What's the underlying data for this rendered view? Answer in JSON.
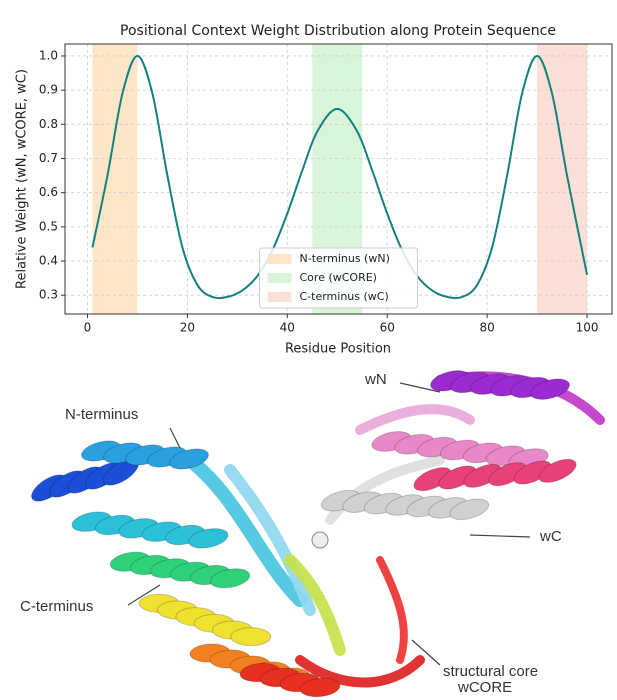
{
  "chart_data": {
    "type": "line",
    "title": "Positional Context Weight Distribution along Protein Sequence",
    "x_label": "Residue Position",
    "y_label": "Relative Weight (wN, wCORE, wC)",
    "x": [
      1,
      4,
      7,
      10,
      13,
      16,
      19,
      22,
      25,
      28,
      31,
      34,
      37,
      40,
      43,
      46,
      50,
      54,
      57,
      60,
      63,
      66,
      69,
      72,
      75,
      78,
      81,
      84,
      87,
      90,
      93,
      96,
      100
    ],
    "series": [
      {
        "color": "#14807f",
        "values": [
          0.44,
          0.65,
          0.89,
          1.0,
          0.89,
          0.65,
          0.44,
          0.33,
          0.295,
          0.295,
          0.314,
          0.356,
          0.431,
          0.539,
          0.665,
          0.779,
          0.845,
          0.779,
          0.665,
          0.539,
          0.431,
          0.356,
          0.314,
          0.295,
          0.295,
          0.33,
          0.44,
          0.65,
          0.89,
          1.0,
          0.89,
          0.65,
          0.36
        ]
      }
    ],
    "spans": [
      {
        "name": "N-terminus (wN)",
        "color": "#fde6c8",
        "range": [
          1,
          10
        ]
      },
      {
        "name": "Core (wCORE)",
        "color": "#d9f5d9",
        "range": [
          45,
          55
        ]
      },
      {
        "name": "C-terminus (wC)",
        "color": "#fce0d8",
        "range": [
          90,
          100
        ]
      }
    ],
    "xlim": [
      -4.5,
      105
    ],
    "ylim": [
      0.245,
      1.035
    ],
    "xticks": [
      0,
      20,
      40,
      60,
      80,
      100
    ],
    "yticks": [
      0.3,
      0.4,
      0.5,
      0.6,
      0.7,
      0.8,
      0.9,
      {
        "value": 1.0,
        "label": "1.0"
      }
    ],
    "grid": true,
    "legend": "lower center"
  },
  "illustration": {
    "labels": [
      "wN",
      "N-terminus",
      "wC",
      "C-terminus",
      "structural core",
      "wCORE"
    ]
  }
}
